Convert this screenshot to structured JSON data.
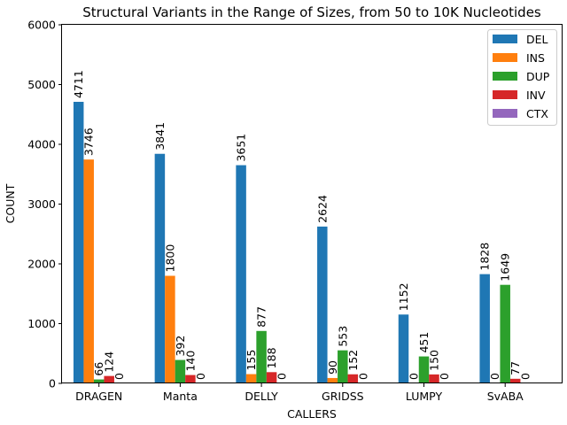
{
  "chart_data": {
    "type": "bar",
    "title": "Structural Variants in the Range of Sizes, from 50 to 10K Nucleotides",
    "xlabel": "CALLERS",
    "ylabel": "COUNT",
    "ylim": [
      0,
      6000
    ],
    "yticks": [
      "0",
      "1000",
      "2000",
      "3000",
      "4000",
      "5000",
      "6000"
    ],
    "grid": false,
    "legend_position": "top-right",
    "categories": [
      "DRAGEN",
      "Manta",
      "DELLY",
      "GRIDSS",
      "LUMPY",
      "SvABA"
    ],
    "series": [
      {
        "name": "DEL",
        "color": "#1f77b4",
        "values": [
          4711,
          3841,
          3651,
          2624,
          1152,
          1828
        ]
      },
      {
        "name": "INS",
        "color": "#ff7f0e",
        "values": [
          3746,
          1800,
          155,
          90,
          0,
          0
        ]
      },
      {
        "name": "DUP",
        "color": "#2ca02c",
        "values": [
          66,
          392,
          877,
          553,
          451,
          1649
        ]
      },
      {
        "name": "INV",
        "color": "#d62728",
        "values": [
          124,
          140,
          188,
          152,
          150,
          77
        ]
      },
      {
        "name": "CTX",
        "color": "#9467bd",
        "values": [
          0,
          0,
          0,
          0,
          0,
          0
        ]
      }
    ]
  }
}
